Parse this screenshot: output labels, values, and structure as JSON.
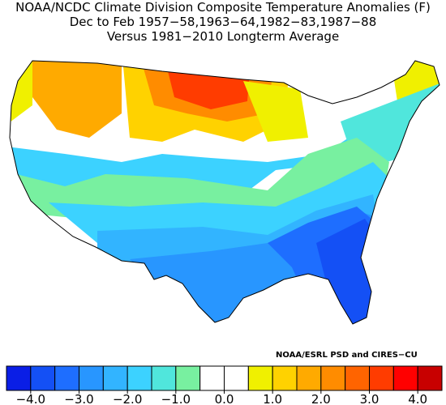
{
  "header": {
    "lines": [
      "NOAA/NCDC Climate Division Composite Temperature Anomalies (F)",
      "Dec to Feb  1957−58,1963−64,1982−83,1987−88",
      "Versus 1981−2010 Longterm Average"
    ]
  },
  "credit": "NOAA/ESRL PSD and CIRES−CU",
  "colorbar": {
    "lim": [
      -4.5,
      4.5
    ],
    "colors": [
      "#0a1ee6",
      "#1450f5",
      "#1e6eff",
      "#2896ff",
      "#32b4ff",
      "#3cd2ff",
      "#50e6dc",
      "#78f0a0",
      "#ffffff",
      "#ffffff",
      "#f0f000",
      "#ffd200",
      "#ffaa00",
      "#ff8c00",
      "#ff6400",
      "#ff3c00",
      "#ff0000",
      "#c80000"
    ],
    "ticks": [
      {
        "value": -4,
        "label": "−4.0"
      },
      {
        "value": -3,
        "label": "−3.0"
      },
      {
        "value": -2,
        "label": "−2.0"
      },
      {
        "value": -1,
        "label": "−1.0"
      },
      {
        "value": 0,
        "label": "0.0"
      },
      {
        "value": 1,
        "label": "1.0"
      },
      {
        "value": 2,
        "label": "2.0"
      },
      {
        "value": 3,
        "label": "3.0"
      },
      {
        "value": 4,
        "label": "4.0"
      }
    ]
  }
}
